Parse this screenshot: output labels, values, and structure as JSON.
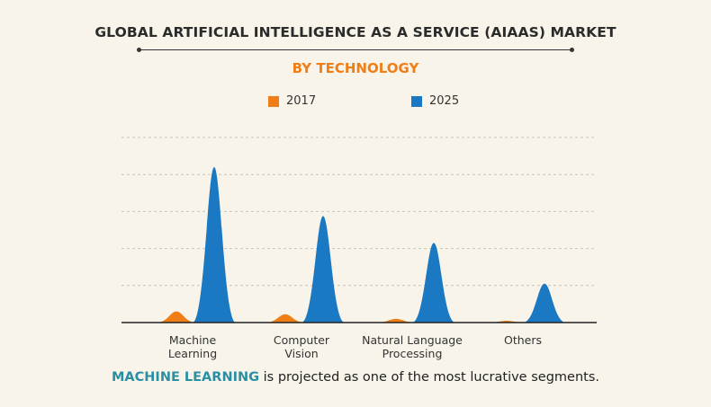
{
  "colors": {
    "2017": "#f07e16",
    "2025": "#1b78c2",
    "grid": "#c9c4b8",
    "title": "#2b2b2b",
    "highlight": "#2a8fa3"
  },
  "header": {
    "title": "GLOBAL ARTIFICIAL INTELLIGENCE AS A SERVICE (AIAAS) MARKET",
    "subtitle": "BY TECHNOLOGY"
  },
  "legend": [
    {
      "label": "2017",
      "color": "#f07e16"
    },
    {
      "label": "2025",
      "color": "#1b78c2"
    }
  ],
  "chart_data": {
    "type": "area",
    "categories": [
      [
        "Machine",
        "Learning"
      ],
      [
        "Computer",
        "Vision"
      ],
      [
        "Natural Language",
        "Processing"
      ],
      [
        "Others"
      ]
    ],
    "series": [
      {
        "name": "2017",
        "values": [
          0.6,
          0.45,
          0.2,
          0.1
        ]
      },
      {
        "name": "2025",
        "values": [
          8.4,
          5.75,
          4.3,
          2.1
        ]
      }
    ],
    "ylim": [
      0,
      10
    ],
    "grid": true,
    "legend_position": "top-center"
  },
  "footnote": {
    "highlight": "MACHINE LEARNING",
    "rest": " is projected as one of the most lucrative segments."
  }
}
